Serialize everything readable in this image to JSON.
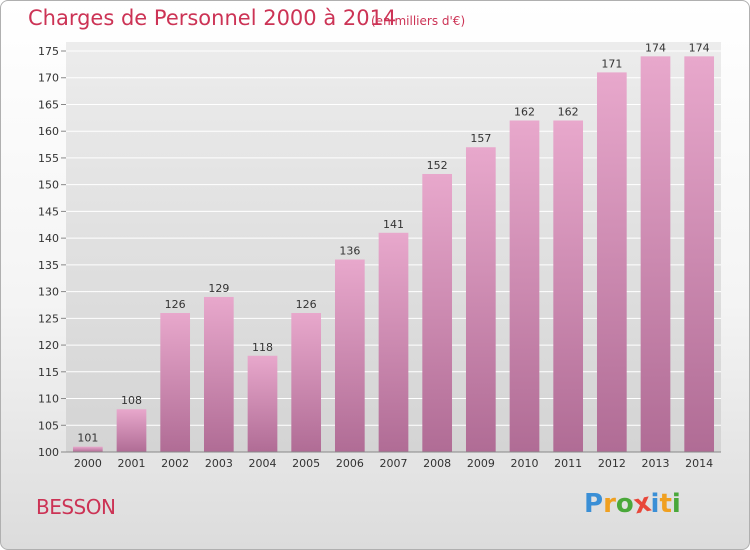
{
  "header": {
    "title": "Charges de Personnel 2000 à 2014",
    "subtitle": "(en milliers d'€)"
  },
  "footer": {
    "commune": "BESSON",
    "logo_text": "Proxiti",
    "logo_letters": [
      {
        "ch": "P",
        "color": "#3a8fd6"
      },
      {
        "ch": "r",
        "color": "#f0a020"
      },
      {
        "ch": "o",
        "color": "#4aa83a"
      },
      {
        "ch": "x",
        "color": "#e8473a"
      },
      {
        "ch": "i",
        "color": "#3a8fd6"
      },
      {
        "ch": "t",
        "color": "#f0a020"
      },
      {
        "ch": "i",
        "color": "#4aa83a"
      }
    ]
  },
  "colors": {
    "title": "#cc3355",
    "bar_top": "#e8a8cc",
    "bar_bottom": "#b06c95",
    "grid": "#ffffff"
  },
  "chart_data": {
    "type": "bar",
    "categories": [
      "2000",
      "2001",
      "2002",
      "2003",
      "2004",
      "2005",
      "2006",
      "2007",
      "2008",
      "2009",
      "2010",
      "2011",
      "2012",
      "2013",
      "2014"
    ],
    "values": [
      101,
      108,
      126,
      129,
      118,
      126,
      136,
      141,
      152,
      157,
      162,
      162,
      171,
      174,
      174
    ],
    "ylim": [
      100,
      175
    ],
    "yticks": [
      100,
      105,
      110,
      115,
      120,
      125,
      130,
      135,
      140,
      145,
      150,
      155,
      160,
      165,
      170,
      175
    ],
    "grid": true,
    "legend": "none"
  }
}
